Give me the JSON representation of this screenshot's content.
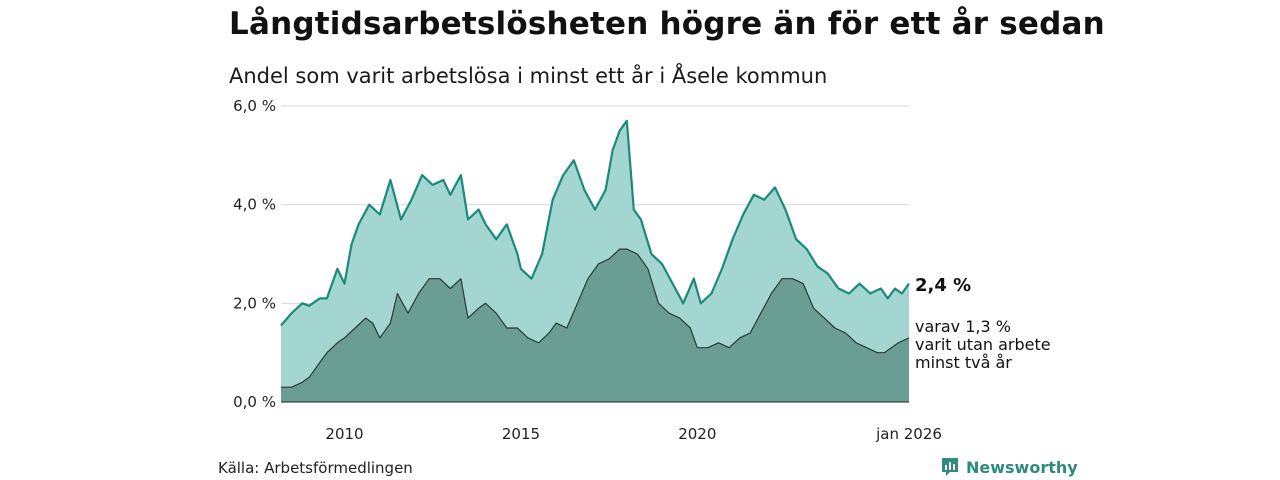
{
  "header": {
    "title": "Långtidsarbetslösheten högre än för ett år sedan",
    "subtitle": "Andel som varit arbetslösa i minst ett år i Åsele kommun"
  },
  "footer": {
    "source": "Källa: Arbetsförmedlingen",
    "brand": "Newsworthy"
  },
  "labels": {
    "last_value": "2,4 %",
    "sub_line1": "varav 1,3 %",
    "sub_line2": "varit utan arbete",
    "sub_line3": "minst två år"
  },
  "colors": {
    "main_line": "#1a8a7a",
    "main_fill": "#a3d6d1",
    "sub_line": "#2a3a36",
    "sub_fill": "#6a9e95",
    "grid": "#d9d9d9",
    "brand": "#2e8b7e"
  },
  "chart_data": {
    "type": "area",
    "title": "Långtidsarbetslösheten högre än för ett år sedan",
    "subtitle": "Andel som varit arbetslösa i minst ett år i Åsele kommun",
    "xlabel": "",
    "ylabel": "",
    "x_range": [
      2008.2,
      2026.0
    ],
    "ylim": [
      0,
      6
    ],
    "y_ticks": [
      0,
      2,
      4,
      6
    ],
    "y_tick_labels": [
      "0,0 %",
      "2,0 %",
      "4,0 %",
      "6,0 %"
    ],
    "x_ticks": [
      2010,
      2015,
      2020,
      2026.0
    ],
    "x_tick_labels": [
      "2010",
      "2015",
      "2020",
      "jan 2026"
    ],
    "grid": true,
    "series": [
      {
        "name": "Arbetslösa minst ett år",
        "x": [
          2008.2,
          2008.5,
          2008.8,
          2009.0,
          2009.3,
          2009.5,
          2009.8,
          2010.0,
          2010.2,
          2010.4,
          2010.7,
          2011.0,
          2011.3,
          2011.6,
          2011.9,
          2012.2,
          2012.5,
          2012.8,
          2013.0,
          2013.3,
          2013.5,
          2013.8,
          2014.0,
          2014.3,
          2014.6,
          2014.9,
          2015.0,
          2015.3,
          2015.6,
          2015.9,
          2016.2,
          2016.5,
          2016.8,
          2017.1,
          2017.4,
          2017.6,
          2017.8,
          2018.0,
          2018.2,
          2018.4,
          2018.7,
          2019.0,
          2019.3,
          2019.6,
          2019.9,
          2020.1,
          2020.4,
          2020.7,
          2021.0,
          2021.3,
          2021.6,
          2021.9,
          2022.2,
          2022.5,
          2022.8,
          2023.1,
          2023.4,
          2023.7,
          2024.0,
          2024.3,
          2024.6,
          2024.9,
          2025.2,
          2025.4,
          2025.6,
          2025.8,
          2026.0
        ],
        "values": [
          1.55,
          1.8,
          2.0,
          1.95,
          2.1,
          2.1,
          2.7,
          2.4,
          3.2,
          3.6,
          4.0,
          3.8,
          4.5,
          3.7,
          4.1,
          4.6,
          4.4,
          4.5,
          4.2,
          4.6,
          3.7,
          3.9,
          3.6,
          3.3,
          3.6,
          3.0,
          2.7,
          2.5,
          3.0,
          4.1,
          4.6,
          4.9,
          4.3,
          3.9,
          4.3,
          5.1,
          5.5,
          5.7,
          3.9,
          3.7,
          3.0,
          2.8,
          2.4,
          2.0,
          2.5,
          2.0,
          2.2,
          2.7,
          3.3,
          3.8,
          4.2,
          4.1,
          4.35,
          3.9,
          3.3,
          3.1,
          2.75,
          2.6,
          2.3,
          2.2,
          2.4,
          2.2,
          2.3,
          2.1,
          2.3,
          2.2,
          2.4
        ]
      },
      {
        "name": "varav minst två år",
        "x": [
          2008.2,
          2008.5,
          2008.8,
          2009.0,
          2009.3,
          2009.5,
          2009.8,
          2010.0,
          2010.3,
          2010.6,
          2010.8,
          2011.0,
          2011.3,
          2011.5,
          2011.8,
          2012.1,
          2012.4,
          2012.7,
          2013.0,
          2013.3,
          2013.5,
          2013.8,
          2014.0,
          2014.3,
          2014.6,
          2014.9,
          2015.2,
          2015.5,
          2015.8,
          2016.0,
          2016.3,
          2016.6,
          2016.9,
          2017.2,
          2017.5,
          2017.8,
          2018.0,
          2018.3,
          2018.6,
          2018.9,
          2019.2,
          2019.5,
          2019.8,
          2020.0,
          2020.3,
          2020.6,
          2020.9,
          2021.2,
          2021.5,
          2021.8,
          2022.1,
          2022.4,
          2022.7,
          2023.0,
          2023.3,
          2023.6,
          2023.9,
          2024.2,
          2024.5,
          2024.8,
          2025.1,
          2025.3,
          2025.5,
          2025.7,
          2026.0
        ],
        "values": [
          0.3,
          0.3,
          0.4,
          0.5,
          0.8,
          1.0,
          1.2,
          1.3,
          1.5,
          1.7,
          1.6,
          1.3,
          1.6,
          2.2,
          1.8,
          2.2,
          2.5,
          2.5,
          2.3,
          2.5,
          1.7,
          1.9,
          2.0,
          1.8,
          1.5,
          1.5,
          1.3,
          1.2,
          1.4,
          1.6,
          1.5,
          2.0,
          2.5,
          2.8,
          2.9,
          3.1,
          3.1,
          3.0,
          2.7,
          2.0,
          1.8,
          1.7,
          1.5,
          1.1,
          1.1,
          1.2,
          1.1,
          1.3,
          1.4,
          1.8,
          2.2,
          2.5,
          2.5,
          2.4,
          1.9,
          1.7,
          1.5,
          1.4,
          1.2,
          1.1,
          1.0,
          1.0,
          1.1,
          1.2,
          1.3
        ]
      }
    ]
  }
}
